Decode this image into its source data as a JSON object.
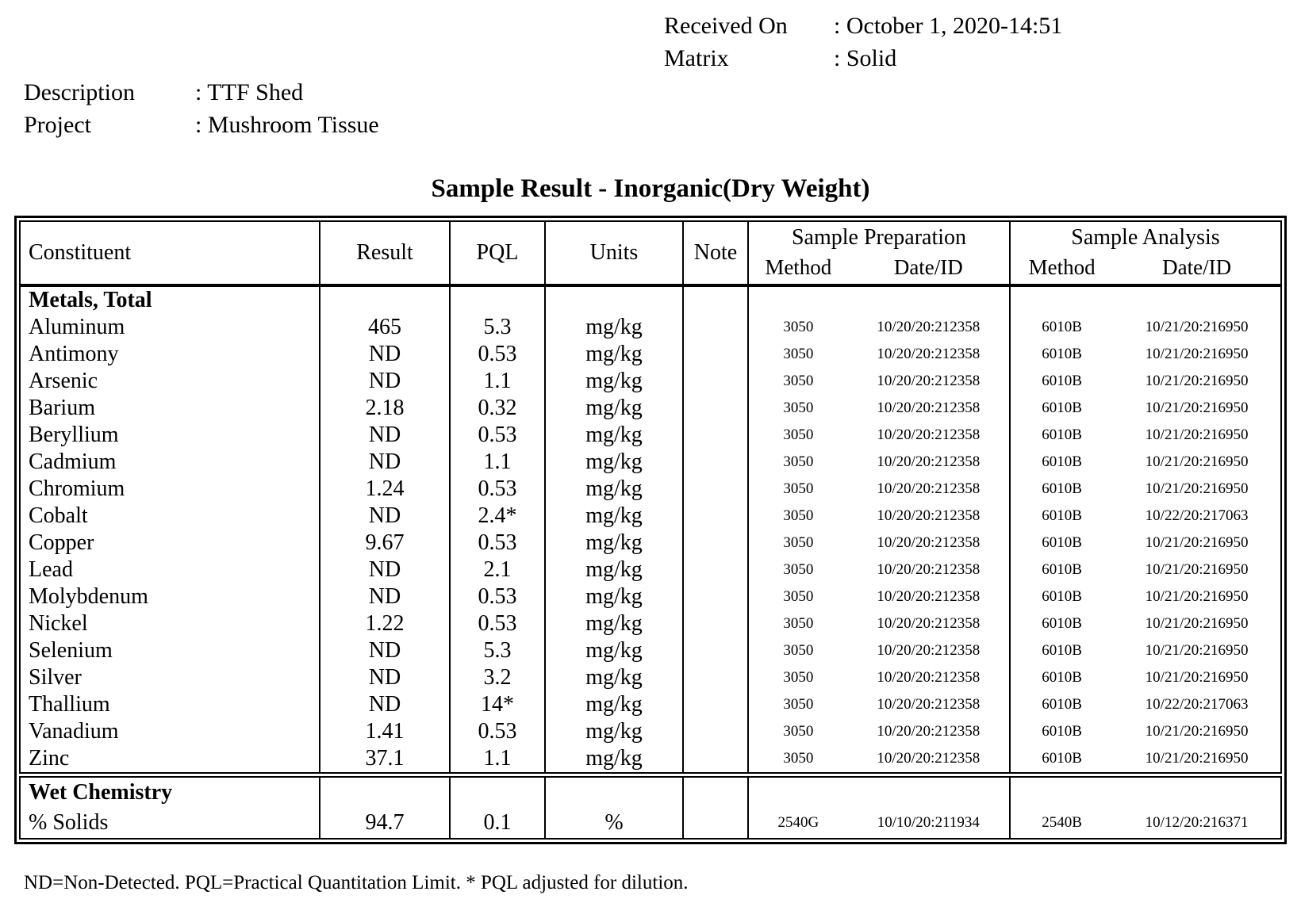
{
  "meta": {
    "received_on_label": "Received On",
    "received_on_value": ": October 1, 2020-14:51",
    "matrix_label": "Matrix",
    "matrix_value": ": Solid",
    "description_label": "Description",
    "description_value": ": TTF Shed",
    "project_label": "Project",
    "project_value": ": Mushroom Tissue"
  },
  "table": {
    "title": "Sample Result - Inorganic(Dry Weight)",
    "columns": {
      "constituent": "Constituent",
      "result": "Result",
      "pql": "PQL",
      "units": "Units",
      "note": "Note",
      "prep_group": "Sample Preparation",
      "analysis_group": "Sample Analysis",
      "method": "Method",
      "date_id": "Date/ID"
    },
    "sections": [
      {
        "name": "Metals, Total",
        "rows": [
          {
            "constituent": "Aluminum",
            "result": "465",
            "pql": "5.3",
            "units": "mg/kg",
            "note": "",
            "prep_method": "3050",
            "prep_date": "10/20/20:212358",
            "anal_method": "6010B",
            "anal_date": "10/21/20:216950"
          },
          {
            "constituent": "Antimony",
            "result": "ND",
            "pql": "0.53",
            "units": "mg/kg",
            "note": "",
            "prep_method": "3050",
            "prep_date": "10/20/20:212358",
            "anal_method": "6010B",
            "anal_date": "10/21/20:216950"
          },
          {
            "constituent": "Arsenic",
            "result": "ND",
            "pql": "1.1",
            "units": "mg/kg",
            "note": "",
            "prep_method": "3050",
            "prep_date": "10/20/20:212358",
            "anal_method": "6010B",
            "anal_date": "10/21/20:216950"
          },
          {
            "constituent": "Barium",
            "result": "2.18",
            "pql": "0.32",
            "units": "mg/kg",
            "note": "",
            "prep_method": "3050",
            "prep_date": "10/20/20:212358",
            "anal_method": "6010B",
            "anal_date": "10/21/20:216950"
          },
          {
            "constituent": "Beryllium",
            "result": "ND",
            "pql": "0.53",
            "units": "mg/kg",
            "note": "",
            "prep_method": "3050",
            "prep_date": "10/20/20:212358",
            "anal_method": "6010B",
            "anal_date": "10/21/20:216950"
          },
          {
            "constituent": "Cadmium",
            "result": "ND",
            "pql": "1.1",
            "units": "mg/kg",
            "note": "",
            "prep_method": "3050",
            "prep_date": "10/20/20:212358",
            "anal_method": "6010B",
            "anal_date": "10/21/20:216950"
          },
          {
            "constituent": "Chromium",
            "result": "1.24",
            "pql": "0.53",
            "units": "mg/kg",
            "note": "",
            "prep_method": "3050",
            "prep_date": "10/20/20:212358",
            "anal_method": "6010B",
            "anal_date": "10/21/20:216950"
          },
          {
            "constituent": "Cobalt",
            "result": "ND",
            "pql": "2.4*",
            "units": "mg/kg",
            "note": "",
            "prep_method": "3050",
            "prep_date": "10/20/20:212358",
            "anal_method": "6010B",
            "anal_date": "10/22/20:217063"
          },
          {
            "constituent": "Copper",
            "result": "9.67",
            "pql": "0.53",
            "units": "mg/kg",
            "note": "",
            "prep_method": "3050",
            "prep_date": "10/20/20:212358",
            "anal_method": "6010B",
            "anal_date": "10/21/20:216950"
          },
          {
            "constituent": "Lead",
            "result": "ND",
            "pql": "2.1",
            "units": "mg/kg",
            "note": "",
            "prep_method": "3050",
            "prep_date": "10/20/20:212358",
            "anal_method": "6010B",
            "anal_date": "10/21/20:216950"
          },
          {
            "constituent": "Molybdenum",
            "result": "ND",
            "pql": "0.53",
            "units": "mg/kg",
            "note": "",
            "prep_method": "3050",
            "prep_date": "10/20/20:212358",
            "anal_method": "6010B",
            "anal_date": "10/21/20:216950"
          },
          {
            "constituent": "Nickel",
            "result": "1.22",
            "pql": "0.53",
            "units": "mg/kg",
            "note": "",
            "prep_method": "3050",
            "prep_date": "10/20/20:212358",
            "anal_method": "6010B",
            "anal_date": "10/21/20:216950"
          },
          {
            "constituent": "Selenium",
            "result": "ND",
            "pql": "5.3",
            "units": "mg/kg",
            "note": "",
            "prep_method": "3050",
            "prep_date": "10/20/20:212358",
            "anal_method": "6010B",
            "anal_date": "10/21/20:216950"
          },
          {
            "constituent": "Silver",
            "result": "ND",
            "pql": "3.2",
            "units": "mg/kg",
            "note": "",
            "prep_method": "3050",
            "prep_date": "10/20/20:212358",
            "anal_method": "6010B",
            "anal_date": "10/21/20:216950"
          },
          {
            "constituent": "Thallium",
            "result": "ND",
            "pql": "14*",
            "units": "mg/kg",
            "note": "",
            "prep_method": "3050",
            "prep_date": "10/20/20:212358",
            "anal_method": "6010B",
            "anal_date": "10/22/20:217063"
          },
          {
            "constituent": "Vanadium",
            "result": "1.41",
            "pql": "0.53",
            "units": "mg/kg",
            "note": "",
            "prep_method": "3050",
            "prep_date": "10/20/20:212358",
            "anal_method": "6010B",
            "anal_date": "10/21/20:216950"
          },
          {
            "constituent": "Zinc",
            "result": "37.1",
            "pql": "1.1",
            "units": "mg/kg",
            "note": "",
            "prep_method": "3050",
            "prep_date": "10/20/20:212358",
            "anal_method": "6010B",
            "anal_date": "10/21/20:216950"
          }
        ]
      },
      {
        "name": "Wet Chemistry",
        "rows": [
          {
            "constituent": "% Solids",
            "result": "94.7",
            "pql": "0.1",
            "units": "%",
            "note": "",
            "prep_method": "2540G",
            "prep_date": "10/10/20:211934",
            "anal_method": "2540B",
            "anal_date": "10/12/20:216371"
          }
        ]
      }
    ],
    "footnote": "ND=Non-Detected. PQL=Practical Quantitation Limit. * PQL adjusted for dilution."
  }
}
